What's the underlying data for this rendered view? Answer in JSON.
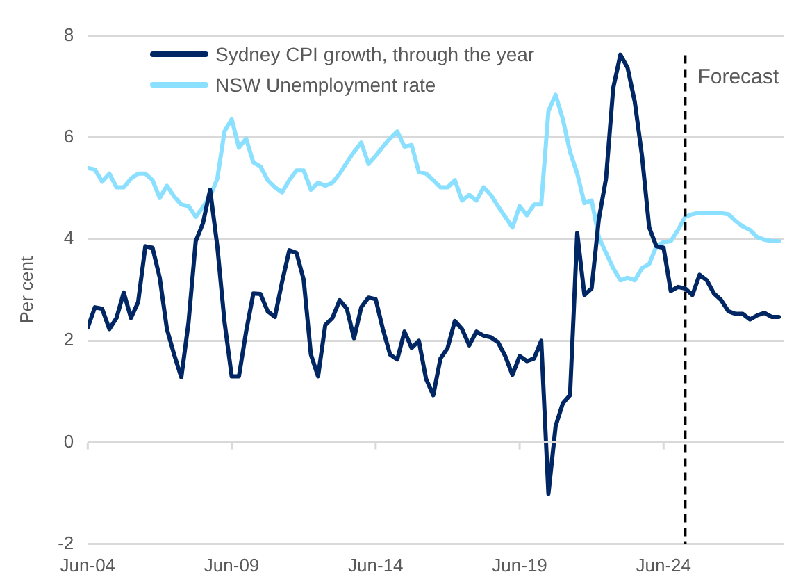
{
  "chart_data": {
    "type": "line",
    "ylabel": "Per cent",
    "x": [
      "2004-06",
      "2004-09",
      "2004-12",
      "2005-03",
      "2005-06",
      "2005-09",
      "2005-12",
      "2006-03",
      "2006-06",
      "2006-09",
      "2006-12",
      "2007-03",
      "2007-06",
      "2007-09",
      "2007-12",
      "2008-03",
      "2008-06",
      "2008-09",
      "2008-12",
      "2009-03",
      "2009-06",
      "2009-09",
      "2009-12",
      "2010-03",
      "2010-06",
      "2010-09",
      "2010-12",
      "2011-03",
      "2011-06",
      "2011-09",
      "2011-12",
      "2012-03",
      "2012-06",
      "2012-09",
      "2012-12",
      "2013-03",
      "2013-06",
      "2013-09",
      "2013-12",
      "2014-03",
      "2014-06",
      "2014-09",
      "2014-12",
      "2015-03",
      "2015-06",
      "2015-09",
      "2015-12",
      "2016-03",
      "2016-06",
      "2016-09",
      "2016-12",
      "2017-03",
      "2017-06",
      "2017-09",
      "2017-12",
      "2018-03",
      "2018-06",
      "2018-09",
      "2018-12",
      "2019-03",
      "2019-06",
      "2019-09",
      "2019-12",
      "2020-03",
      "2020-06",
      "2020-09",
      "2020-12",
      "2021-03",
      "2021-06",
      "2021-09",
      "2021-12",
      "2022-03",
      "2022-06",
      "2022-09",
      "2022-12",
      "2023-03",
      "2023-06",
      "2023-09",
      "2023-12",
      "2024-03",
      "2024-06",
      "2024-09",
      "2024-12",
      "2025-03",
      "2025-06",
      "2025-09",
      "2025-12",
      "2026-03",
      "2026-06",
      "2026-09",
      "2026-12",
      "2027-03",
      "2027-06",
      "2027-09",
      "2027-12",
      "2028-03",
      "2028-06"
    ],
    "series": [
      {
        "name": "Sydney CPI growth, through the year",
        "color": "#002664",
        "values": [
          2.26,
          2.66,
          2.63,
          2.23,
          2.45,
          2.95,
          2.45,
          2.76,
          3.86,
          3.83,
          3.24,
          2.23,
          1.73,
          1.28,
          2.36,
          3.96,
          4.31,
          4.97,
          3.86,
          2.37,
          1.3,
          1.3,
          2.18,
          2.93,
          2.92,
          2.58,
          2.47,
          3.16,
          3.78,
          3.73,
          3.2,
          1.73,
          1.3,
          2.31,
          2.45,
          2.8,
          2.63,
          2.05,
          2.66,
          2.85,
          2.82,
          2.23,
          1.73,
          1.63,
          2.18,
          1.86,
          2.0,
          1.25,
          0.93,
          1.65,
          1.86,
          2.39,
          2.23,
          1.91,
          2.18,
          2.1,
          2.07,
          1.97,
          1.7,
          1.33,
          1.7,
          1.6,
          1.65,
          2.0,
          -1.01,
          0.32,
          0.77,
          0.93,
          4.12,
          2.9,
          3.03,
          4.39,
          5.19,
          6.97,
          7.63,
          7.37,
          6.7,
          5.64,
          4.23,
          3.86,
          3.83,
          2.98,
          3.06,
          3.03,
          2.9,
          3.3,
          3.19,
          2.93,
          2.8,
          2.58,
          2.53,
          2.53,
          2.42,
          2.5,
          2.55,
          2.47,
          2.47
        ]
      },
      {
        "name": "NSW Unemployment rate",
        "color": "#8ce0ff",
        "values": [
          5.4,
          5.37,
          5.13,
          5.29,
          5.02,
          5.02,
          5.19,
          5.29,
          5.29,
          5.16,
          4.81,
          5.05,
          4.84,
          4.68,
          4.65,
          4.44,
          4.63,
          4.84,
          5.19,
          6.12,
          6.36,
          5.8,
          5.98,
          5.51,
          5.43,
          5.16,
          5.02,
          4.92,
          5.16,
          5.35,
          5.35,
          4.97,
          5.11,
          5.05,
          5.11,
          5.29,
          5.51,
          5.72,
          5.9,
          5.48,
          5.64,
          5.82,
          5.98,
          6.12,
          5.82,
          5.85,
          5.32,
          5.29,
          5.16,
          5.02,
          5.02,
          5.16,
          4.76,
          4.87,
          4.76,
          5.02,
          4.87,
          4.65,
          4.44,
          4.23,
          4.65,
          4.47,
          4.68,
          4.68,
          6.52,
          6.84,
          6.36,
          5.72,
          5.29,
          4.71,
          4.76,
          4.04,
          3.73,
          3.43,
          3.19,
          3.24,
          3.19,
          3.43,
          3.51,
          3.86,
          3.94,
          3.96,
          4.18,
          4.44,
          4.49,
          4.52,
          4.51,
          4.51,
          4.51,
          4.49,
          4.36,
          4.25,
          4.18,
          4.04,
          3.99,
          3.96,
          3.96
        ]
      }
    ],
    "xlim": [
      "2004-06",
      "2028-08"
    ],
    "xticks": [
      {
        "value": "2004-06",
        "label": "Jun-04"
      },
      {
        "value": "2009-06",
        "label": "Jun-09"
      },
      {
        "value": "2014-06",
        "label": "Jun-14"
      },
      {
        "value": "2019-06",
        "label": "Jun-19"
      },
      {
        "value": "2024-06",
        "label": "Jun-24"
      }
    ],
    "ylim": [
      -2,
      8
    ],
    "yticks": [
      -2,
      0,
      2,
      4,
      6,
      8
    ],
    "ref_lines": [
      {
        "axis": "x",
        "value": "2025-03",
        "label": "Forecast",
        "color": "#000000",
        "line_style": "dashed"
      }
    ],
    "grid": "y",
    "legend": "top left",
    "marker": "none",
    "line_style": "solid"
  }
}
